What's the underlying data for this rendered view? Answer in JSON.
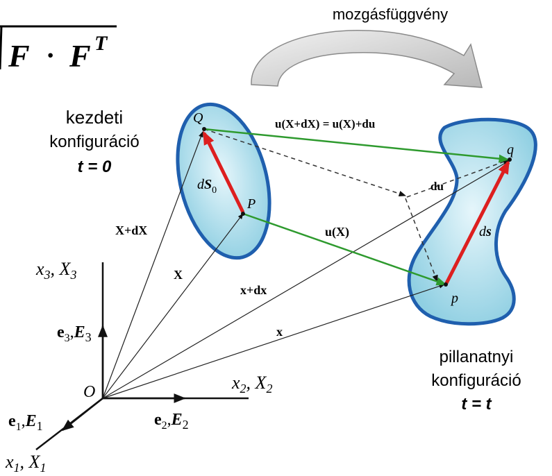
{
  "formula": {
    "lhs": "F",
    "op": "·",
    "rhs": "F",
    "sup": "T"
  },
  "motion_label": "mozgásfüggvény",
  "initial_config": {
    "line1": "kezdeti",
    "line2": "konfiguráció",
    "time": "t = 0"
  },
  "current_config": {
    "line1": "pillanatnyi",
    "line2": "konfiguráció",
    "time": "t = t"
  },
  "points": {
    "Q": "Q",
    "P": "P",
    "q": "q",
    "p": "p",
    "O": "O"
  },
  "vectors": {
    "dS0_d": "d",
    "dS0_S": "S",
    "dS0_sub": "0",
    "ds_d": "d",
    "ds_s": "s",
    "u_top": "u(X+dX) = u(X)+du",
    "du": "du",
    "uX": "u(X)",
    "XdX": "X+dX",
    "X": "X",
    "xdx": "x+dx",
    "x": "x"
  },
  "axes": {
    "x3": "x",
    "x3_sub": "3",
    "X3": "X",
    "X3_sub": "3",
    "x2": "x",
    "x2_sub": "2",
    "X2": "X",
    "X2_sub": "2",
    "x1": "x",
    "x1_sub": "1",
    "X1": "X",
    "X1_sub": "1"
  },
  "basis": {
    "e3": "e",
    "e3_sub": "3",
    "E3": "E",
    "E3_sub": "3",
    "e2": "e",
    "e2_sub": "2",
    "E2": "E",
    "E2_sub": "2",
    "e1": "e",
    "e1_sub": "1",
    "E1": "E",
    "E1_sub": "1"
  },
  "colors": {
    "region_fill": "#a9dbe8",
    "region_stroke": "#1f5fae",
    "green": "#2e9a2e",
    "red": "#dd1f1f",
    "black": "#111111",
    "arrow_gray": "#cfcfcf"
  }
}
